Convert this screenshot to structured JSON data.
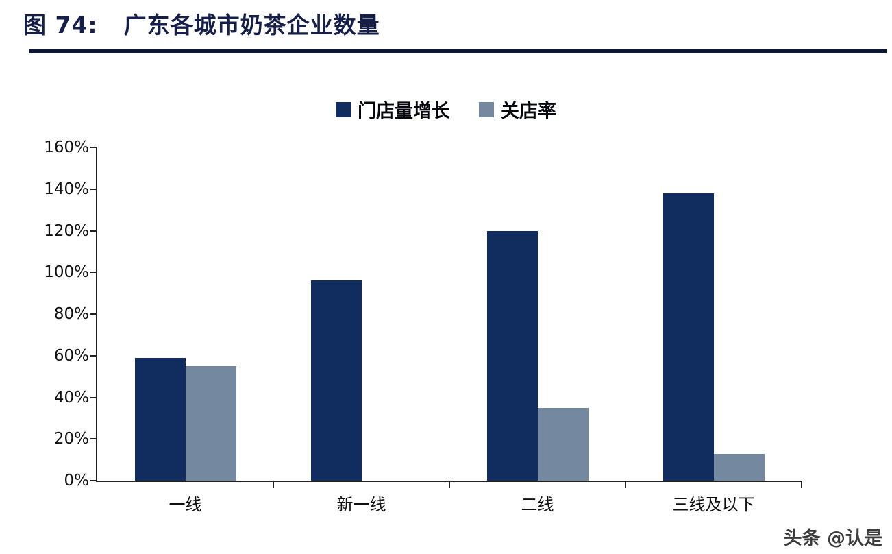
{
  "header": {
    "figure_label": "图 74:",
    "title": "广东各城市奶茶企业数量"
  },
  "watermark": "头条 @认是",
  "colors": {
    "primary_bar": "#112c5e",
    "secondary_bar": "#74889f",
    "title_text": "#151f49",
    "title_rule": "#0e1733",
    "axis": "#222222"
  },
  "chart_data": {
    "type": "bar",
    "title": "广东各城市奶茶企业数量",
    "categories": [
      "一线",
      "新一线",
      "二线",
      "三线及以下"
    ],
    "series": [
      {
        "name": "门店量增长",
        "color": "#112c5e",
        "values": [
          59,
          96,
          120,
          138
        ]
      },
      {
        "name": "关店率",
        "color": "#74889f",
        "values": [
          55,
          0,
          35,
          13
        ]
      }
    ],
    "xlabel": "",
    "ylabel": "",
    "ylim": [
      0,
      160
    ],
    "ytick_step": 20,
    "ytick_format": "percent",
    "legend_position": "top-center",
    "grid": false
  }
}
